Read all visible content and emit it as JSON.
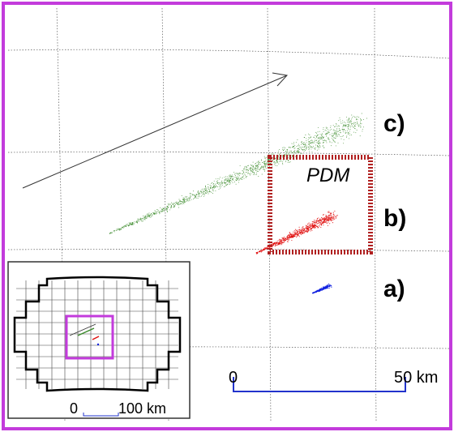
{
  "colors": {
    "frame": "#c33bdc",
    "grid": "#555555",
    "cloud_c": "#3a8a2a",
    "cloud_b": "#e01010",
    "cloud_a": "#1020e0",
    "pdm_box": "#b02020",
    "scale_bar": "#2233cc"
  },
  "labels": {
    "c": "c)",
    "b": "b)",
    "a": "a)",
    "pdm": "PDM"
  },
  "scale": {
    "start": "0",
    "end": "50 km"
  },
  "inset": {
    "scale_start": "0",
    "scale_end": "100 km"
  }
}
